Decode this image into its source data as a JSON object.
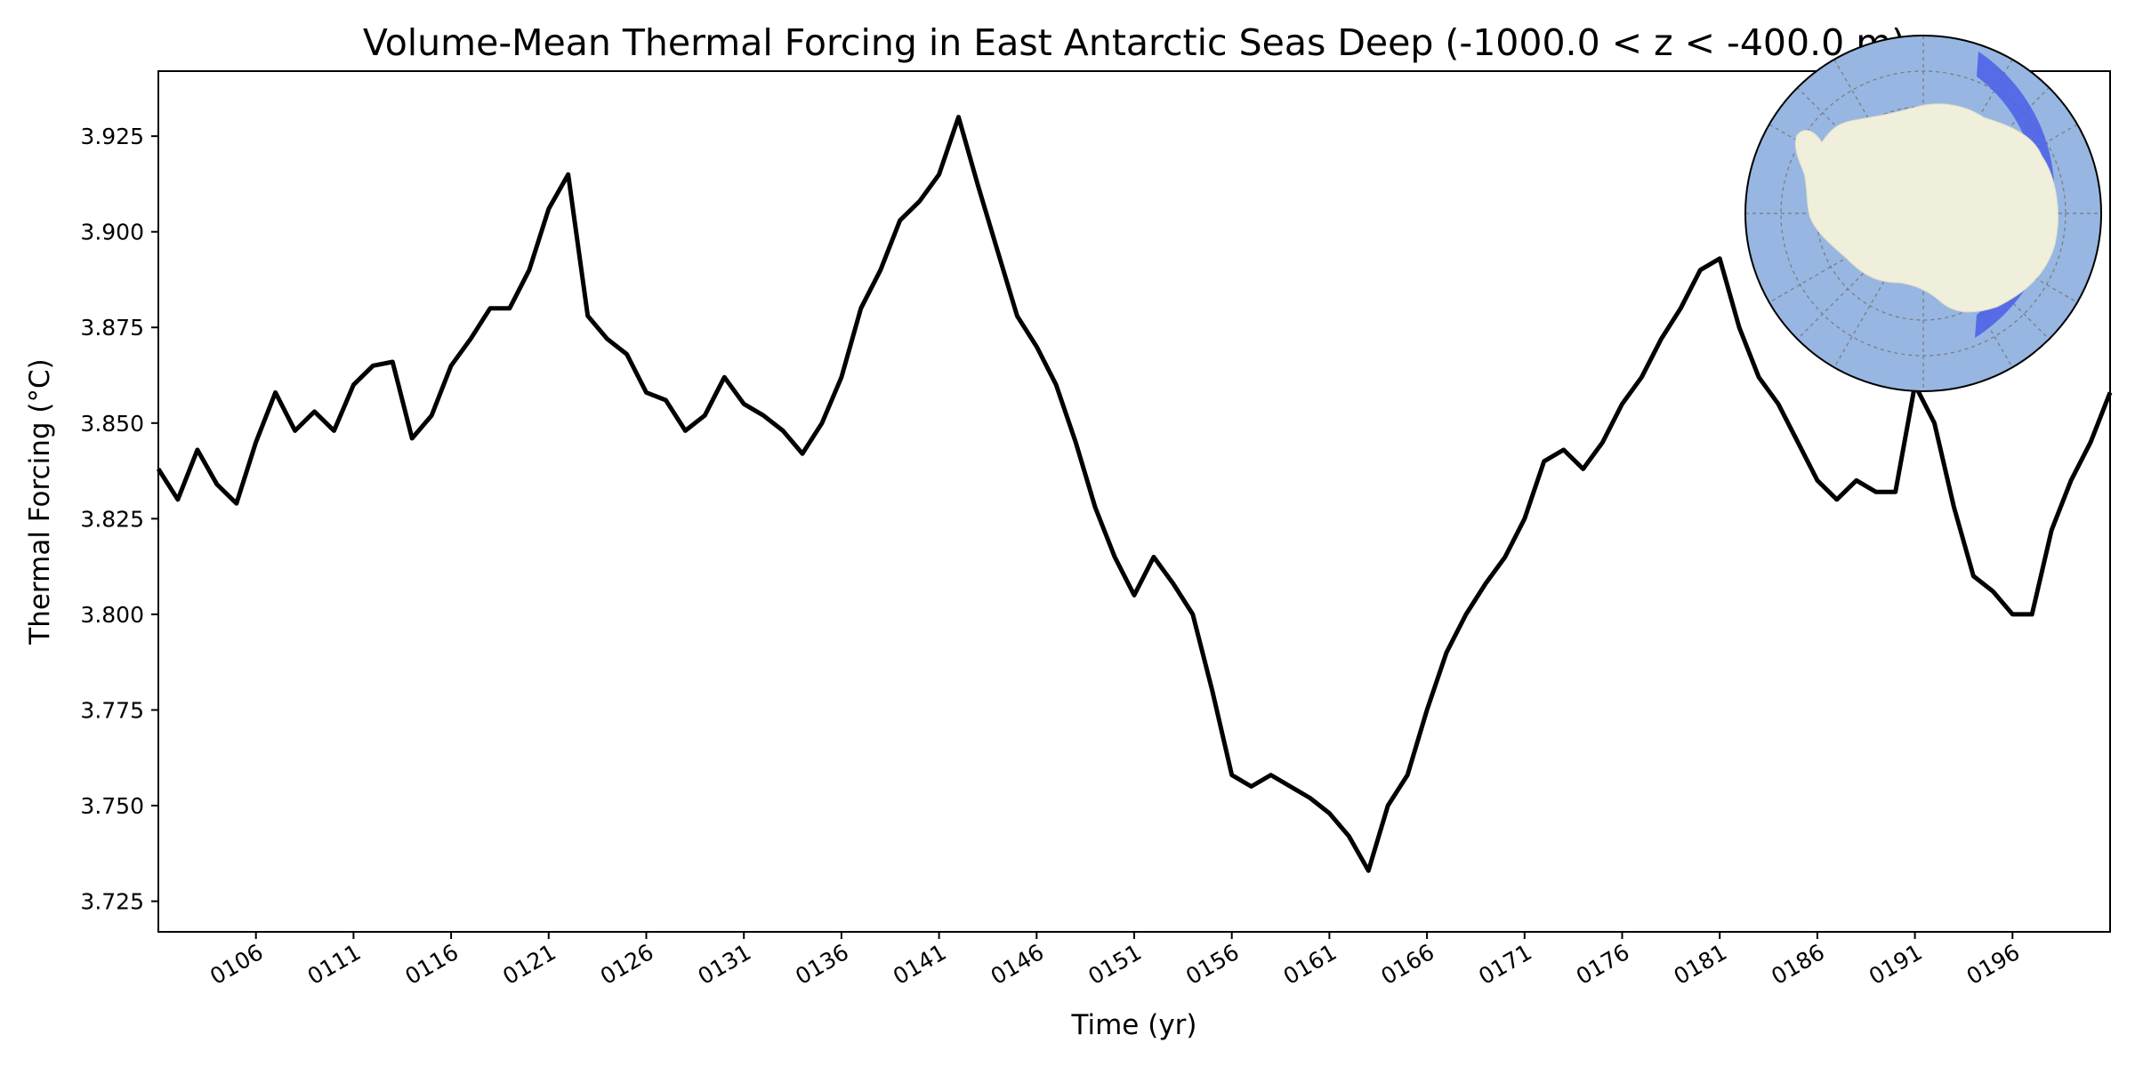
{
  "chart_data": {
    "type": "line",
    "title": "Volume-Mean Thermal Forcing in East Antarctic Seas Deep (-1000.0 < z < -400.0 m)",
    "xlabel": "Time (yr)",
    "ylabel": "Thermal Forcing (°C)",
    "xlim": [
      101,
      201
    ],
    "ylim": [
      3.717,
      3.942
    ],
    "x_tick_labels": [
      "0106",
      "0111",
      "0116",
      "0121",
      "0126",
      "0131",
      "0136",
      "0141",
      "0146",
      "0151",
      "0156",
      "0161",
      "0166",
      "0171",
      "0176",
      "0181",
      "0186",
      "0191",
      "0196"
    ],
    "x_tick_values": [
      106,
      111,
      116,
      121,
      126,
      131,
      136,
      141,
      146,
      151,
      156,
      161,
      166,
      171,
      176,
      181,
      186,
      191,
      196
    ],
    "y_ticks": [
      3.725,
      3.75,
      3.775,
      3.8,
      3.825,
      3.85,
      3.875,
      3.9,
      3.925
    ],
    "y_tick_labels": [
      "3.725",
      "3.750",
      "3.775",
      "3.800",
      "3.825",
      "3.850",
      "3.875",
      "3.900",
      "3.925"
    ],
    "grid": false,
    "line_color": "#000000",
    "series": [
      {
        "x": [
          101,
          102,
          103,
          104,
          105,
          106,
          107,
          108,
          109,
          110,
          111,
          112,
          113,
          114,
          115,
          116,
          117,
          118,
          119,
          120,
          121,
          122,
          123,
          124,
          125,
          126,
          127,
          128,
          129,
          130,
          131,
          132,
          133,
          134,
          135,
          136,
          137,
          138,
          139,
          140,
          141,
          142,
          143,
          144,
          145,
          146,
          147,
          148,
          149,
          150,
          151,
          152,
          153,
          154,
          155,
          156,
          157,
          158,
          159,
          160,
          161,
          162,
          163,
          164,
          165,
          166,
          167,
          168,
          169,
          170,
          171,
          172,
          173,
          174,
          175,
          176,
          177,
          178,
          179,
          180,
          181,
          182,
          183,
          184,
          185,
          186,
          187,
          188,
          189,
          190,
          191,
          192,
          193,
          194,
          195,
          196,
          197,
          198,
          199,
          200,
          201
        ],
        "values": [
          3.838,
          3.83,
          3.843,
          3.834,
          3.829,
          3.845,
          3.858,
          3.848,
          3.853,
          3.848,
          3.86,
          3.865,
          3.866,
          3.846,
          3.852,
          3.865,
          3.872,
          3.88,
          3.88,
          3.89,
          3.906,
          3.915,
          3.878,
          3.872,
          3.868,
          3.858,
          3.856,
          3.848,
          3.852,
          3.862,
          3.855,
          3.852,
          3.848,
          3.842,
          3.85,
          3.862,
          3.88,
          3.89,
          3.903,
          3.908,
          3.915,
          3.93,
          3.912,
          3.895,
          3.878,
          3.87,
          3.86,
          3.845,
          3.828,
          3.815,
          3.805,
          3.815,
          3.808,
          3.8,
          3.78,
          3.758,
          3.755,
          3.758,
          3.755,
          3.752,
          3.748,
          3.742,
          3.733,
          3.75,
          3.758,
          3.775,
          3.79,
          3.8,
          3.808,
          3.815,
          3.825,
          3.84,
          3.843,
          3.838,
          3.845,
          3.855,
          3.862,
          3.872,
          3.88,
          3.89,
          3.893,
          3.875,
          3.862,
          3.855,
          3.845,
          3.835,
          3.83,
          3.835,
          3.832,
          3.832,
          3.86,
          3.85,
          3.828,
          3.81,
          3.806,
          3.8,
          3.8,
          3.822,
          3.835,
          3.845,
          3.858
        ]
      }
    ]
  },
  "inset_map": {
    "ocean_color": "#97b6e1",
    "land_color": "#efefdb",
    "region_color": "#4a5fe8",
    "region_name": "East Antarctic Seas"
  }
}
